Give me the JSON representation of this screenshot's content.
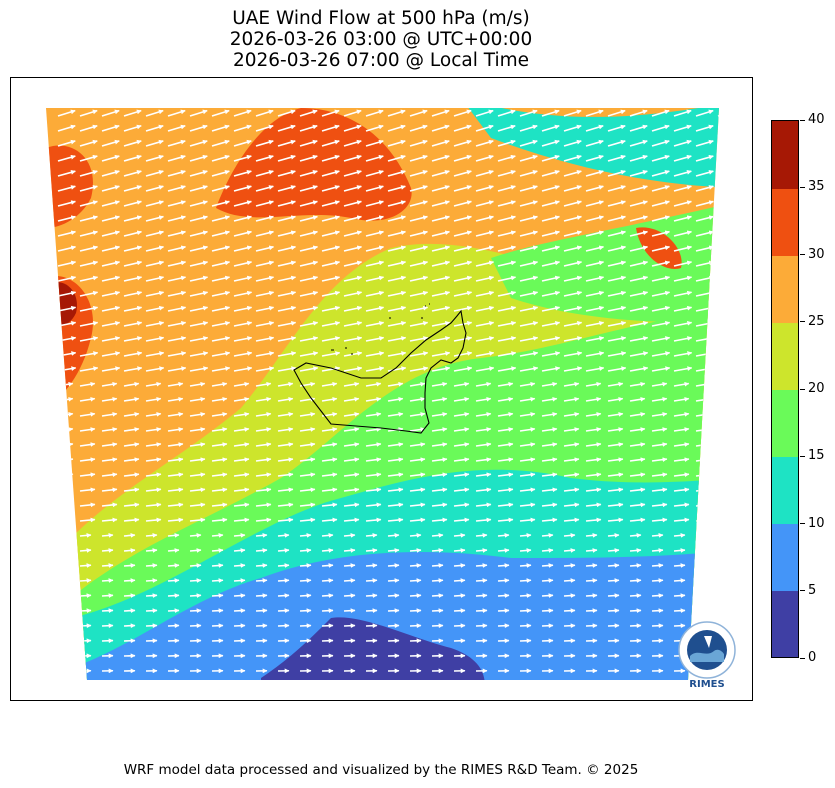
{
  "title": {
    "line1": "UAE Wind Flow at 500 hPa (m/s)",
    "line2": "2026-03-26 03:00 @ UTC+00:00",
    "line3": "2026-03-26 07:00 @ Local Time"
  },
  "colorbar": {
    "ticks": [
      "0",
      "5",
      "10",
      "15",
      "20",
      "25",
      "30",
      "35",
      "40"
    ],
    "colors": [
      "#3f3fa4",
      "#4495f8",
      "#1ee3c4",
      "#6afa59",
      "#cde52c",
      "#fcab38",
      "#ef5011",
      "#a61805"
    ]
  },
  "footer": "WRF model data processed and visualized by the RIMES R&D Team. © 2025",
  "logo": {
    "text": "RIMES",
    "ring_text": "Regional Integrated Multi-Hazard Early Warning System",
    "icon": "rimes-logo-icon"
  },
  "map": {
    "boundary_icon": "uae-boundary-outline",
    "arrow_color": "#ffffff"
  }
}
